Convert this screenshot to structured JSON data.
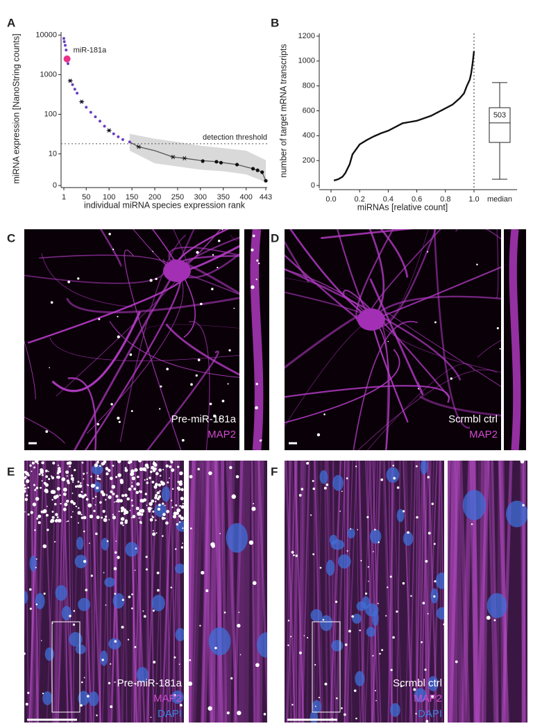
{
  "chart_data": [
    {
      "type": "rank-line",
      "panel": "A",
      "ylabel": "miRNA expression [NanoString counts]",
      "xlabel": "individual miRNA species expression rank",
      "yscale": "symlog",
      "linthresh": 10,
      "linscale": 0.8,
      "xlim": [
        1,
        443
      ],
      "xticks": [
        1,
        50,
        100,
        150,
        200,
        250,
        300,
        350,
        400,
        443
      ],
      "ylim": [
        0,
        12000
      ],
      "yticks": [
        0,
        10,
        100,
        1000,
        10000
      ],
      "series": [
        {
          "color": "#6a3fc0",
          "x": [
            1,
            2,
            4,
            6,
            10,
            15,
            20,
            25,
            30,
            40,
            50,
            60,
            70,
            80,
            90,
            100,
            110,
            120,
            130,
            145
          ],
          "values": [
            8200,
            6800,
            5500,
            4200,
            1900,
            700,
            560,
            430,
            340,
            207,
            150,
            112,
            86,
            67,
            50,
            39,
            32,
            27,
            23,
            20
          ]
        },
        {
          "color": "#555555",
          "x": [
            145,
            165,
            200,
            240,
            265,
            300,
            335,
            380,
            415,
            425,
            435,
            443
          ],
          "values": [
            20,
            15,
            12,
            9,
            8.6,
            7.9,
            7.5,
            6.6,
            5.3,
            4.8,
            4.2,
            1.5
          ]
        }
      ],
      "band": {
        "color": "#cfcfcf",
        "x": [
          145,
          200,
          250,
          300,
          350,
          400,
          443
        ],
        "lower": [
          12,
          7,
          6,
          5,
          4.5,
          3.5,
          1
        ],
        "upper": [
          32,
          24,
          20,
          16,
          14,
          12,
          8
        ]
      },
      "highlight": {
        "label": "miR-181a",
        "x": 8,
        "value": 2500,
        "color": "#e8328a"
      },
      "asterisks": {
        "x": [
          15,
          40,
          100,
          165,
          240,
          265
        ],
        "values": [
          700,
          207,
          39,
          15,
          9,
          8.6
        ]
      },
      "dots": {
        "x": [
          305,
          335,
          345,
          380,
          415,
          425,
          435,
          443
        ],
        "values": [
          7.7,
          7.5,
          7.2,
          6.6,
          5.3,
          4.8,
          4.2,
          1.5
        ]
      },
      "threshold": {
        "value": 18,
        "label": "detection threshold"
      }
    },
    {
      "type": "line-box",
      "panel": "B",
      "ylabel": "number of target mRNA transcripts",
      "xlabel": "miRNAs [relative count]",
      "xlim": [
        -0.08,
        1.0
      ],
      "xticks": [
        {
          "value": 0,
          "label": "0.0"
        },
        0.2,
        0.4,
        0.6,
        0.8,
        {
          "value": 1,
          "label": "1.0"
        }
      ],
      "ylim": [
        0,
        1200
      ],
      "yticks": [
        0,
        200,
        400,
        600,
        800,
        1000,
        1200
      ],
      "vline": 1.0,
      "series": [
        {
          "color": "#111111",
          "x": [
            0.02,
            0.05,
            0.08,
            0.1,
            0.13,
            0.15,
            0.2,
            0.25,
            0.3,
            0.35,
            0.4,
            0.45,
            0.5,
            0.55,
            0.6,
            0.65,
            0.7,
            0.75,
            0.8,
            0.85,
            0.9,
            0.93,
            0.95,
            0.97,
            0.98,
            0.99,
            1.0
          ],
          "values": [
            40,
            50,
            70,
            100,
            170,
            250,
            330,
            365,
            395,
            420,
            440,
            470,
            500,
            510,
            520,
            540,
            560,
            590,
            620,
            650,
            700,
            740,
            800,
            850,
            900,
            980,
            1080
          ]
        }
      ],
      "box": {
        "label": "median",
        "whisker_low": 50,
        "q1": 346,
        "median": 503,
        "q3": 625,
        "whisker_high": 827
      }
    }
  ],
  "image_panels": [
    {
      "letter": "C",
      "caption": "Pre-miR-181a",
      "stains": [
        "MAP2"
      ]
    },
    {
      "letter": "D",
      "caption": "Scrmbl ctrl",
      "stains": [
        "MAP2"
      ]
    },
    {
      "letter": "E",
      "caption": "Pre-miR-181a",
      "stains": [
        "MAP2",
        "DAPI"
      ]
    },
    {
      "letter": "F",
      "caption": "Scrmbl ctrl",
      "stains": [
        "MAP2",
        "DAPI"
      ]
    }
  ]
}
